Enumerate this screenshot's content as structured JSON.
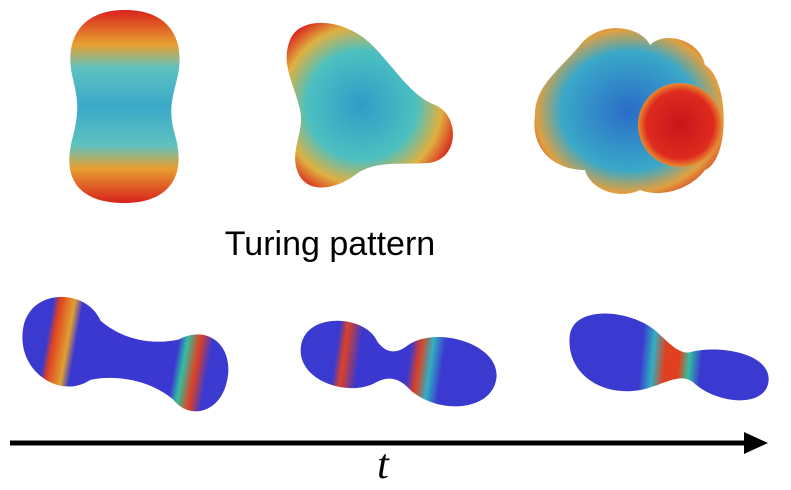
{
  "caption": "Turing pattern",
  "axis_label": "t"
}
